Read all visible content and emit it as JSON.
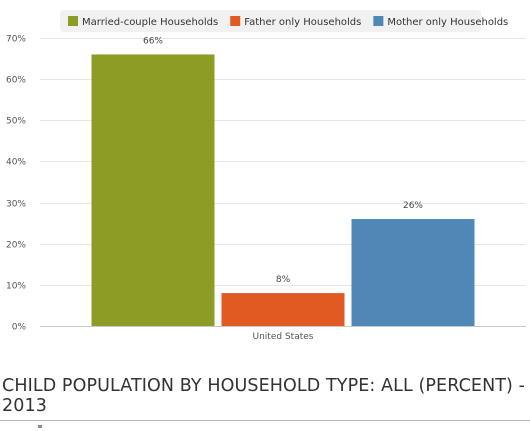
{
  "chart_data": {
    "type": "bar",
    "categories": [
      "United States"
    ],
    "series": [
      {
        "name": "Married-couple Households",
        "values": [
          66
        ],
        "label": "66%",
        "color": "#8c9c24"
      },
      {
        "name": "Father only Households",
        "values": [
          8
        ],
        "label": "8%",
        "color": "#e05a21"
      },
      {
        "name": "Mother only Households",
        "values": [
          26
        ],
        "label": "26%",
        "color": "#4f87b6"
      }
    ],
    "ylim": [
      0,
      70
    ],
    "yticks": [
      0,
      10,
      20,
      30,
      40,
      50,
      60,
      70
    ],
    "ytick_labels": [
      "0%",
      "10%",
      "20%",
      "30%",
      "40%",
      "50%",
      "60%",
      "70%"
    ],
    "grid": true,
    "legend_position": "top",
    "title": "CHILD POPULATION BY HOUSEHOLD TYPE: ALL (PERCENT) - 2013"
  }
}
